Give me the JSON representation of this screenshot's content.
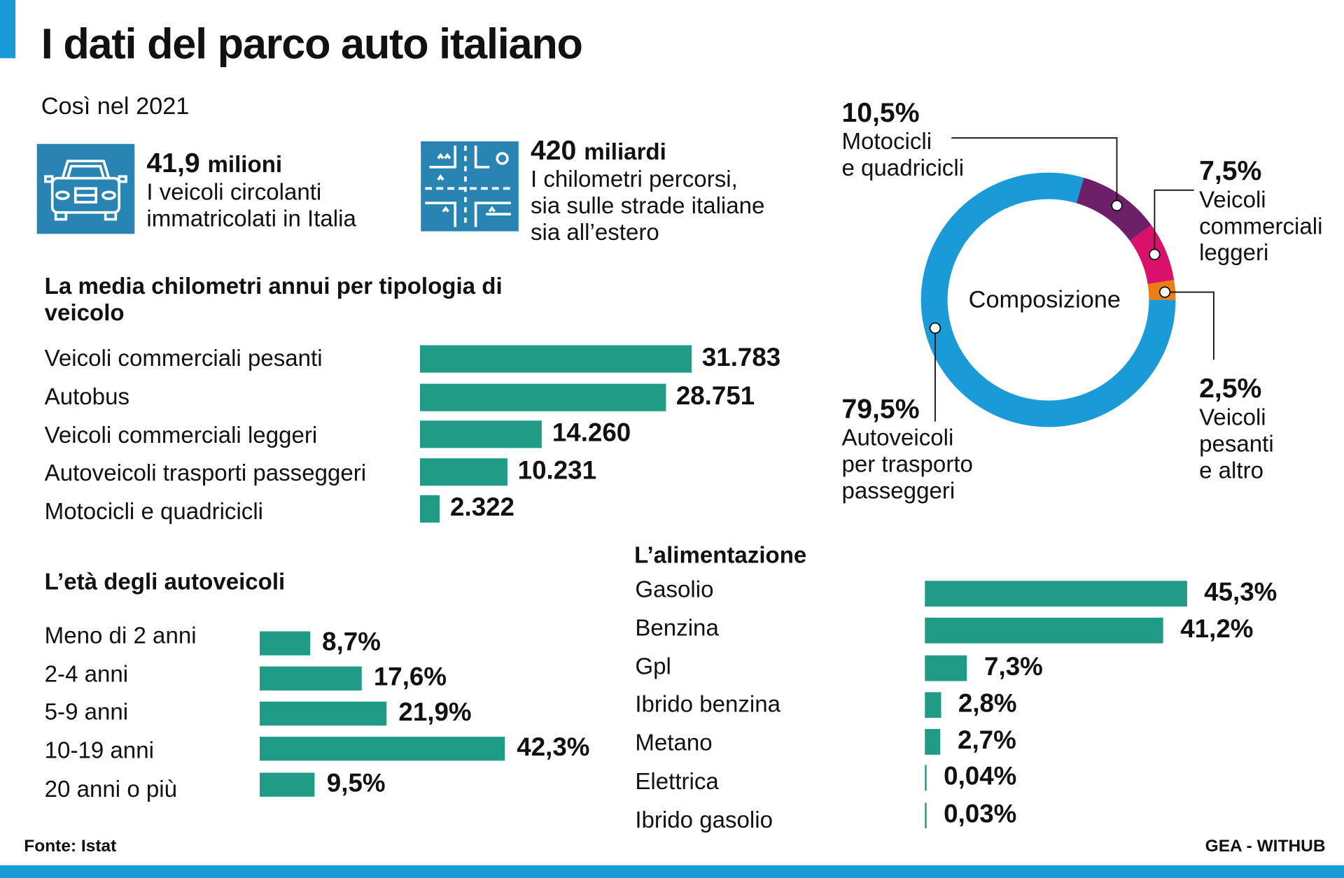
{
  "title": "I dati del parco auto italiano",
  "subtitle": "Così nel 2021",
  "stats": [
    {
      "value": "41,9",
      "unit": "milioni",
      "desc": [
        "I veicoli circolanti",
        "immatricolati in Italia"
      ],
      "icon": "car-icon"
    },
    {
      "value": "420",
      "unit": "miliardi",
      "desc": [
        "I chilometri percorsi,",
        "sia sulle strade italiane",
        "sia all’estero"
      ],
      "icon": "road-map-icon"
    }
  ],
  "colors": {
    "bar": "#1f9b86",
    "accent": "#1a9bd7",
    "blue": "#1a9bd7",
    "purple": "#6e1f6a",
    "pink": "#d9116b",
    "orange": "#ee7d11"
  },
  "chart_data": [
    {
      "type": "bar",
      "title": "La media chilometri annui per tipologia di veicolo",
      "categories": [
        "Veicoli commerciali pesanti",
        "Autobus",
        "Veicoli commerciali leggeri",
        "Autoveicoli trasporti passeggeri",
        "Motocicli e quadricicli"
      ],
      "values": [
        31783,
        28751,
        14260,
        10231,
        2322
      ],
      "labels": [
        "31.783",
        "28.751",
        "14.260",
        "10.231",
        "2.322"
      ]
    },
    {
      "type": "bar",
      "title": "L’età degli autoveicoli",
      "categories": [
        "Meno di 2 anni",
        "2-4 anni",
        "5-9 anni",
        "10-19 anni",
        "20 anni o più"
      ],
      "values": [
        8.7,
        17.6,
        21.9,
        42.3,
        9.5
      ],
      "labels": [
        "8,7%",
        "17,6%",
        "21,9%",
        "42,3%",
        "9,5%"
      ]
    },
    {
      "type": "bar",
      "title": "L’alimentazione",
      "categories": [
        "Gasolio",
        "Benzina",
        "Gpl",
        "Ibrido benzina",
        "Metano",
        "Elettrica",
        "Ibrido gasolio"
      ],
      "values": [
        45.3,
        41.2,
        7.3,
        2.8,
        2.7,
        0.04,
        0.03
      ],
      "labels": [
        "45,3%",
        "41,2%",
        "7,3%",
        "2,8%",
        "2,7%",
        "0,04%",
        "0,03%"
      ]
    },
    {
      "type": "pie",
      "title": "Composizione",
      "slices": [
        {
          "name": "Veicoli pesanti e altro",
          "value": 2.5,
          "label": "2,5%",
          "desc": [
            "Veicoli",
            "pesanti",
            "e altro"
          ],
          "color": "#ee7d11"
        },
        {
          "name": "Veicoli commerciali leggeri",
          "value": 7.5,
          "label": "7,5%",
          "desc": [
            "Veicoli",
            "commerciali",
            "leggeri"
          ],
          "color": "#d9116b"
        },
        {
          "name": "Motocicli e quadricicli",
          "value": 10.5,
          "label": "10,5%",
          "desc": [
            "Motocicli",
            "e quadricicli"
          ],
          "color": "#6e1f6a"
        },
        {
          "name": "Autoveicoli per trasporto passeggeri",
          "value": 79.5,
          "label": "79,5%",
          "desc": [
            "Autoveicoli",
            "per trasporto",
            "passeggeri"
          ],
          "color": "#1a9bd7"
        }
      ]
    }
  ],
  "source": "Fonte: Istat",
  "credit": "GEA - WITHUB"
}
